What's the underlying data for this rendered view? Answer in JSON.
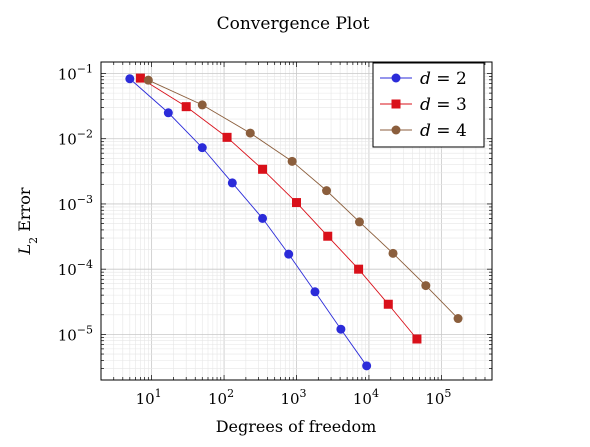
{
  "chart_data": {
    "type": "line",
    "title": "Convergence Plot",
    "xlabel": "Degrees of freedom",
    "ylabel": "L2 Error",
    "x_scale": "log",
    "y_scale": "log",
    "xlim": [
      2,
      500000
    ],
    "ylim": [
      2e-06,
      0.15
    ],
    "x_ticks": [
      {
        "value": 10,
        "mantissa": "10",
        "exp": "1"
      },
      {
        "value": 100,
        "mantissa": "10",
        "exp": "2"
      },
      {
        "value": 1000,
        "mantissa": "10",
        "exp": "3"
      },
      {
        "value": 10000,
        "mantissa": "10",
        "exp": "4"
      },
      {
        "value": 100000,
        "mantissa": "10",
        "exp": "5"
      }
    ],
    "y_ticks": [
      {
        "value": 0.1,
        "mantissa": "10",
        "exp": "−1"
      },
      {
        "value": 0.01,
        "mantissa": "10",
        "exp": "−2"
      },
      {
        "value": 0.001,
        "mantissa": "10",
        "exp": "−3"
      },
      {
        "value": 0.0001,
        "mantissa": "10",
        "exp": "−4"
      },
      {
        "value": 1e-05,
        "mantissa": "10",
        "exp": "−5"
      }
    ],
    "grid": true,
    "legend_position": "top-right",
    "series": [
      {
        "name": "d = 2",
        "legend_var": "d",
        "legend_val": "2",
        "color": "#2b2bd9",
        "marker": "circle",
        "points": [
          {
            "x": 5,
            "y": 0.083
          },
          {
            "x": 17,
            "y": 0.025
          },
          {
            "x": 50,
            "y": 0.0073
          },
          {
            "x": 130,
            "y": 0.0021
          },
          {
            "x": 340,
            "y": 0.0006
          },
          {
            "x": 780,
            "y": 0.00017
          },
          {
            "x": 1800,
            "y": 4.5e-05
          },
          {
            "x": 4100,
            "y": 1.2e-05
          },
          {
            "x": 9300,
            "y": 3.3e-06
          }
        ]
      },
      {
        "name": "d = 3",
        "legend_var": "d",
        "legend_val": "3",
        "color": "#d9101a",
        "marker": "square",
        "points": [
          {
            "x": 7,
            "y": 0.085
          },
          {
            "x": 30,
            "y": 0.031
          },
          {
            "x": 110,
            "y": 0.0105
          },
          {
            "x": 340,
            "y": 0.0034
          },
          {
            "x": 1000,
            "y": 0.00105
          },
          {
            "x": 2700,
            "y": 0.00032
          },
          {
            "x": 7200,
            "y": 0.0001
          },
          {
            "x": 18500,
            "y": 2.9e-05
          },
          {
            "x": 46000,
            "y": 8.5e-06
          }
        ]
      },
      {
        "name": "d = 4",
        "legend_var": "d",
        "legend_val": "4",
        "color": "#8b5e3c",
        "marker": "circle",
        "points": [
          {
            "x": 9,
            "y": 0.079
          },
          {
            "x": 50,
            "y": 0.033
          },
          {
            "x": 230,
            "y": 0.0122
          },
          {
            "x": 870,
            "y": 0.0045
          },
          {
            "x": 2600,
            "y": 0.0016
          },
          {
            "x": 7400,
            "y": 0.00053
          },
          {
            "x": 21500,
            "y": 0.000175
          },
          {
            "x": 61000,
            "y": 5.6e-05
          },
          {
            "x": 170000,
            "y": 1.75e-05
          }
        ]
      }
    ]
  }
}
